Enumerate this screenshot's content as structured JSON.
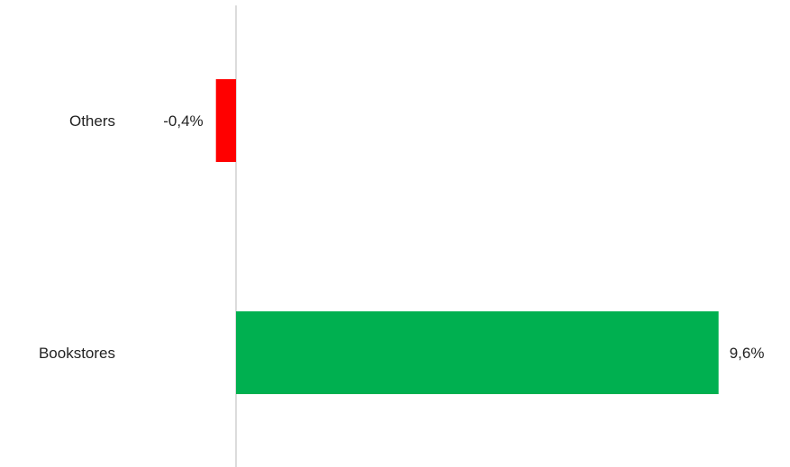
{
  "chart_data": {
    "type": "bar",
    "orientation": "horizontal",
    "categories": [
      "Others",
      "Bookstores"
    ],
    "values": [
      -0.4,
      9.6
    ],
    "value_labels": [
      "-0,4%",
      "9,6%"
    ],
    "colors": [
      "#ff0000",
      "#00b050"
    ],
    "axis_line_color": "#d0d0d0",
    "xlim": [
      -0.4,
      9.6
    ],
    "grid": false,
    "title": "",
    "xlabel": "",
    "ylabel": ""
  }
}
